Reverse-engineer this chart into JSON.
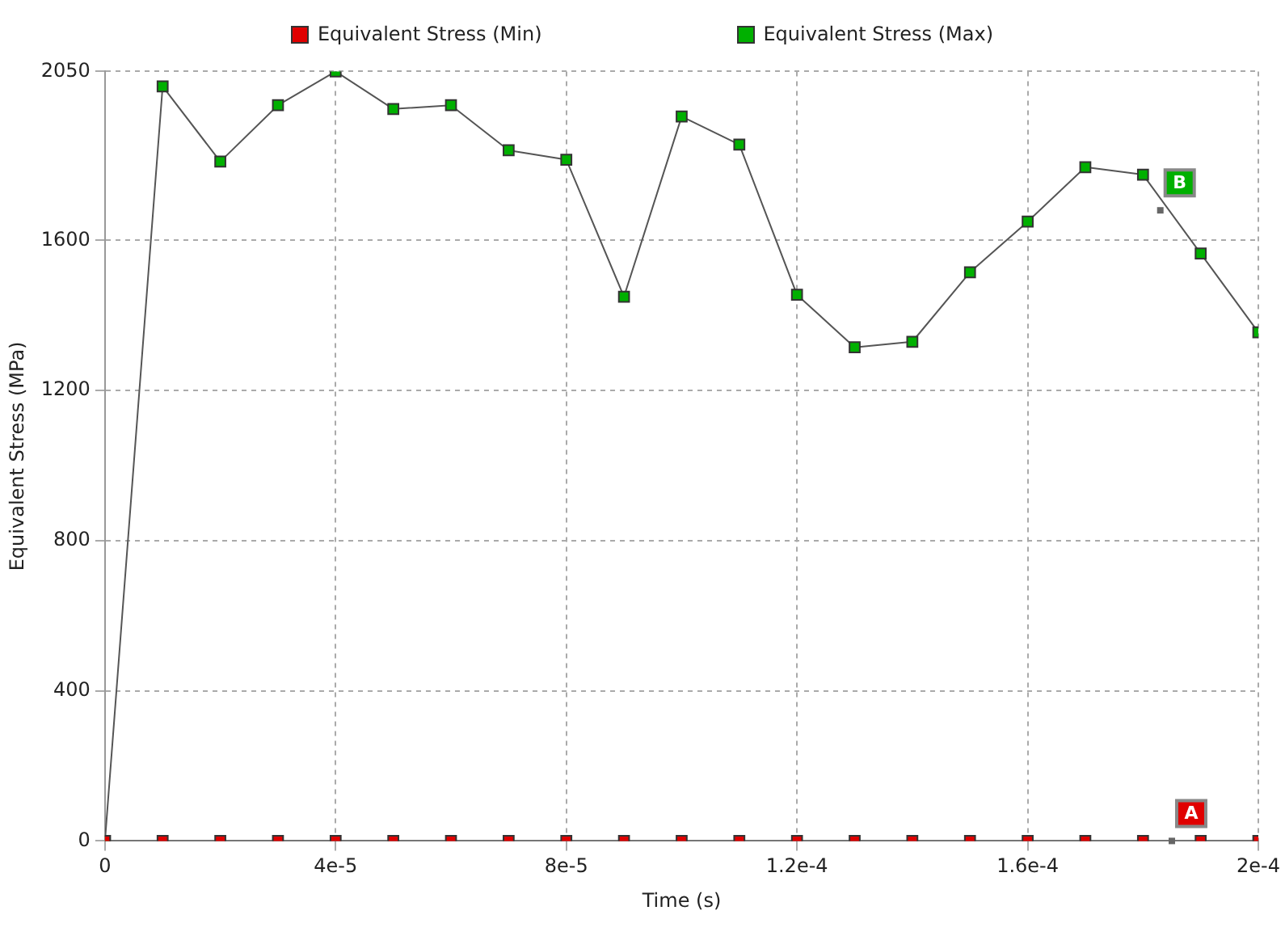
{
  "chart_data": {
    "type": "line",
    "xlabel": "Time (s)",
    "ylabel": "Equivalent Stress (MPa)",
    "x": [
      0,
      1e-05,
      2e-05,
      3e-05,
      4e-05,
      5e-05,
      6e-05,
      7e-05,
      8e-05,
      9e-05,
      0.0001,
      0.00011,
      0.00012,
      0.00013,
      0.00014,
      0.00015,
      0.00016,
      0.00017,
      0.00018,
      0.00019,
      0.0002
    ],
    "series": [
      {
        "name": "Equivalent Stress (Min)",
        "color": "#e00000",
        "values": [
          0,
          0,
          0,
          0,
          0,
          0,
          0,
          0,
          0,
          0,
          0,
          0,
          0,
          0,
          0,
          0,
          0,
          0,
          0,
          0,
          0
        ]
      },
      {
        "name": "Equivalent Stress (Max)",
        "color": "#00b000",
        "values": [
          0,
          2010,
          1810,
          1960,
          2050,
          1950,
          1960,
          1840,
          1815,
          1450,
          1930,
          1855,
          1455,
          1315,
          1330,
          1515,
          1650,
          1795,
          1775,
          1565,
          1355
        ]
      }
    ],
    "annotations": [
      {
        "text": "A",
        "x": 0.000185,
        "y": 0
      },
      {
        "text": "B",
        "x": 0.000183,
        "y": 1680
      }
    ],
    "xlim": [
      0,
      0.0002
    ],
    "xticks": [
      0,
      {
        "value": 4e-05,
        "label": "4e-5"
      },
      {
        "value": 8e-05,
        "label": "8e-5"
      },
      {
        "value": 0.00012,
        "label": "1.2e-4"
      },
      {
        "value": 0.00016,
        "label": "1.6e-4"
      },
      {
        "value": 0.0002,
        "label": "2e-4"
      }
    ],
    "ylim": [
      0,
      2050
    ],
    "yticks": [
      0,
      400,
      800,
      1200,
      1600,
      2050
    ],
    "grid": true,
    "legend": "top",
    "marker": "square",
    "line_style": "solid"
  }
}
